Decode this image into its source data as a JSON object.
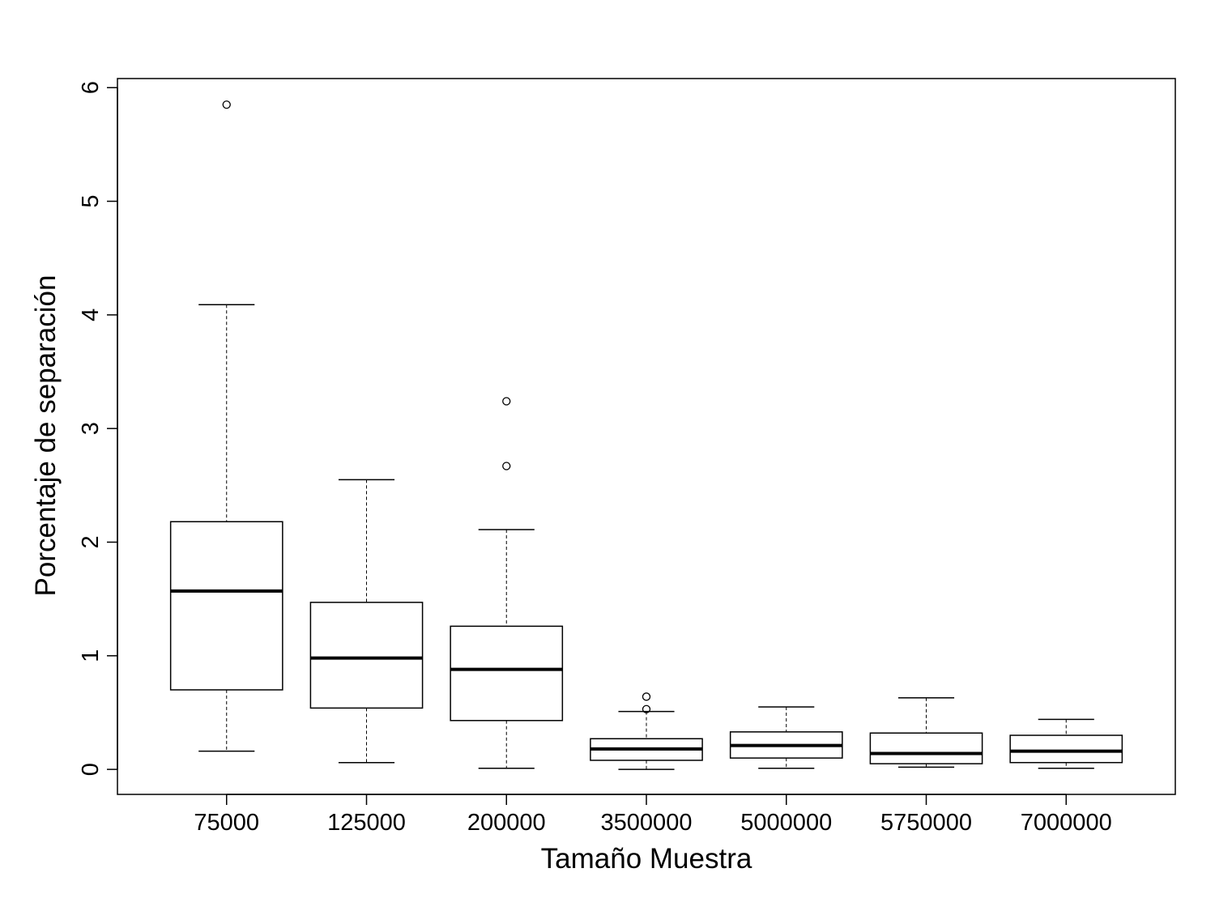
{
  "chart_data": {
    "type": "boxplot",
    "title": "",
    "xlabel": "Tamaño Muestra",
    "ylabel": "Porcentaje de separación",
    "ylim": [
      -0.22,
      6.08
    ],
    "yticks": [
      0,
      1,
      2,
      3,
      4,
      5,
      6
    ],
    "grid": false,
    "legend": "none",
    "categories": [
      "75000",
      "125000",
      "200000",
      "3500000",
      "5000000",
      "5750000",
      "7000000"
    ],
    "boxes": [
      {
        "category": "75000",
        "whisker_low": 0.16,
        "q1": 0.7,
        "median": 1.57,
        "q3": 2.18,
        "whisker_high": 4.09,
        "outliers": [
          5.85
        ]
      },
      {
        "category": "125000",
        "whisker_low": 0.06,
        "q1": 0.54,
        "median": 0.98,
        "q3": 1.47,
        "whisker_high": 2.55,
        "outliers": []
      },
      {
        "category": "200000",
        "whisker_low": 0.01,
        "q1": 0.43,
        "median": 0.88,
        "q3": 1.26,
        "whisker_high": 2.11,
        "outliers": [
          3.24,
          2.67
        ]
      },
      {
        "category": "3500000",
        "whisker_low": 0.0,
        "q1": 0.08,
        "median": 0.18,
        "q3": 0.27,
        "whisker_high": 0.51,
        "outliers": [
          0.64,
          0.53
        ]
      },
      {
        "category": "5000000",
        "whisker_low": 0.01,
        "q1": 0.1,
        "median": 0.21,
        "q3": 0.33,
        "whisker_high": 0.55,
        "outliers": []
      },
      {
        "category": "5750000",
        "whisker_low": 0.02,
        "q1": 0.05,
        "median": 0.14,
        "q3": 0.32,
        "whisker_high": 0.63,
        "outliers": []
      },
      {
        "category": "7000000",
        "whisker_low": 0.01,
        "q1": 0.06,
        "median": 0.16,
        "q3": 0.3,
        "whisker_high": 0.44,
        "outliers": []
      }
    ]
  }
}
